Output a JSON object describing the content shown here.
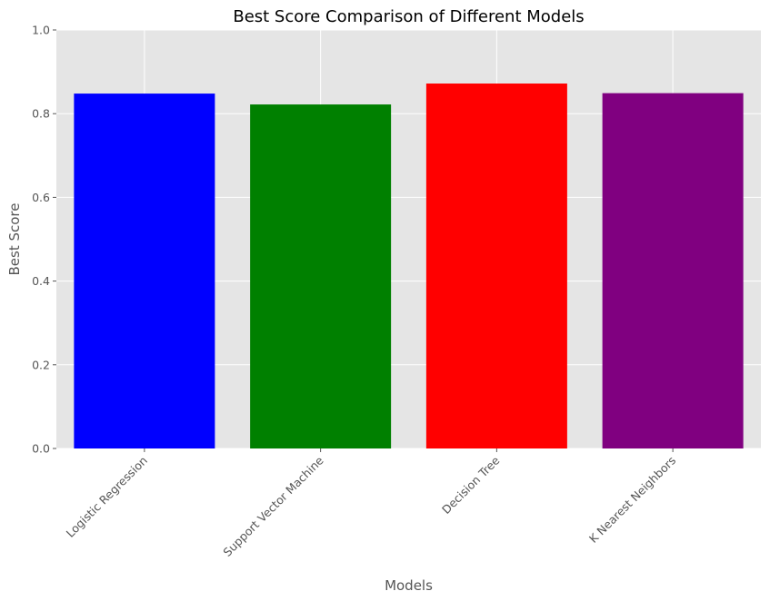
{
  "chart_data": {
    "type": "bar",
    "title": "Best Score Comparison of Different Models",
    "xlabel": "Models",
    "ylabel": "Best Score",
    "categories": [
      "Logistic Regression",
      "Support Vector Machine",
      "Decision Tree",
      "K Nearest Neighbors"
    ],
    "values": [
      0.848,
      0.822,
      0.872,
      0.849
    ],
    "colors": [
      "#0000ff",
      "#008000",
      "#ff0000",
      "#800080"
    ],
    "ylim": [
      0,
      1.0
    ],
    "yticks": [
      0.0,
      0.2,
      0.4,
      0.6,
      0.8,
      1.0
    ],
    "ytick_labels": [
      "0.0",
      "0.2",
      "0.4",
      "0.6",
      "0.8",
      "1.0"
    ],
    "grid": true,
    "background_color": "#e5e5e5",
    "grid_color": "#ffffff",
    "xtick_rotation_deg": 45
  }
}
